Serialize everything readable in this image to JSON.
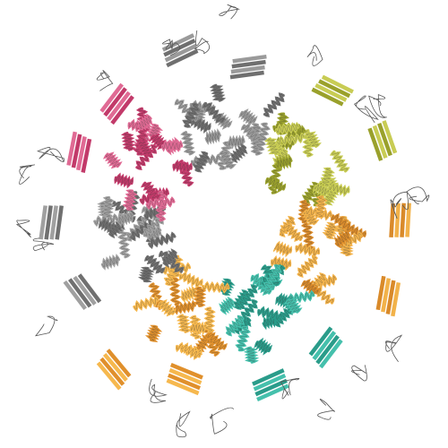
{
  "figure": {
    "background": "#ffffff",
    "subunit_count": 7,
    "subunit_colors": [
      {
        "name": "gray",
        "main": "#6f6f6f",
        "light": "#9a9a9a"
      },
      {
        "name": "olive",
        "main": "#9aa12c",
        "light": "#c8cc54"
      },
      {
        "name": "orange",
        "main": "#d98a2a",
        "light": "#f2b24a"
      },
      {
        "name": "teal",
        "main": "#2a9c8a",
        "light": "#45c0ac"
      },
      {
        "name": "orange2",
        "main": "#e0902c",
        "light": "#f6b84e"
      },
      {
        "name": "gray2",
        "main": "#707070",
        "light": "#a0a0a0"
      },
      {
        "name": "magenta",
        "main": "#c23a6a",
        "light": "#e06a94"
      }
    ],
    "outline_color": "#555555"
  }
}
